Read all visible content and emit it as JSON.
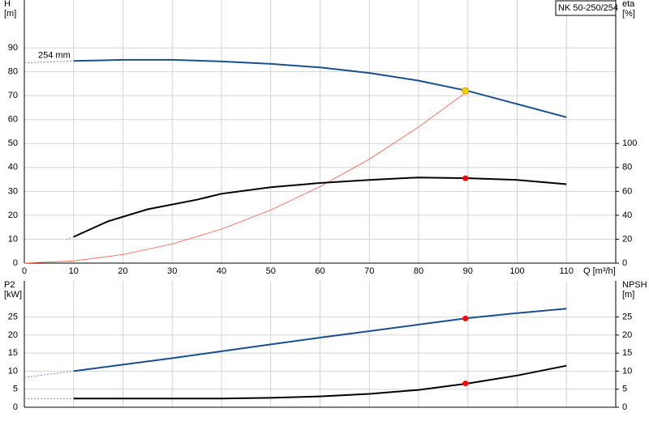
{
  "chart_data": [
    {
      "type": "line",
      "title": "NK 50-250/254",
      "ylabel": "H",
      "yunit": "[m]",
      "y2label": "eta",
      "y2unit": "[%]",
      "xlabel": "Q [m³/h]",
      "annotation": "254 mm",
      "xlim": [
        0,
        120
      ],
      "xticks": [
        0,
        10,
        20,
        30,
        40,
        50,
        60,
        70,
        80,
        90,
        100,
        110
      ],
      "ylim": [
        0,
        110
      ],
      "yticks": [
        0,
        10,
        20,
        30,
        40,
        50,
        60,
        70,
        80,
        90
      ],
      "y2lim": [
        0,
        220
      ],
      "y2ticks": [
        0,
        20,
        40,
        60,
        80,
        100
      ],
      "grid": true,
      "series": [
        {
          "color": "#6f8fbf",
          "dashed": true,
          "x": [
            0,
            10
          ],
          "values": [
            83.7,
            84.5
          ]
        },
        {
          "color": "#1a4f8f",
          "width": 2,
          "x": [
            10,
            20,
            30,
            40,
            50,
            60,
            70,
            80,
            90,
            100,
            110
          ],
          "values": [
            84.5,
            85,
            85,
            84.3,
            83.3,
            81.8,
            79.5,
            76.3,
            72,
            66.5,
            61
          ]
        },
        {
          "color": "#ff5a4a",
          "width": 0.8,
          "x": [
            0,
            10,
            20,
            30,
            40,
            50,
            60,
            70,
            80,
            90
          ],
          "values": [
            0,
            0.9,
            3.6,
            8,
            14.2,
            22.2,
            32,
            43.5,
            56.9,
            72
          ]
        },
        {
          "color": "#999999",
          "dashed": true,
          "axis": "y2",
          "x": [
            8.5,
            10
          ],
          "values": [
            19.6,
            22
          ]
        },
        {
          "color": "#000000",
          "width": 2,
          "axis": "y2",
          "x": [
            10,
            17,
            25,
            35,
            40,
            50,
            60,
            70,
            80,
            90,
            100,
            110
          ],
          "values": [
            22,
            35,
            45,
            53,
            58,
            63.5,
            67,
            69.6,
            71.6,
            71,
            69.6,
            66
          ]
        }
      ],
      "points": [
        {
          "x": 89.5,
          "y": 72,
          "color": "#ffcc00"
        },
        {
          "x": 89.5,
          "y": 71,
          "color": "#ff0000",
          "axis": "y2"
        }
      ]
    },
    {
      "type": "line",
      "ylabel": "P2",
      "yunit": "[kW]",
      "y2label": "NPSH",
      "y2unit": "[m]",
      "xlim": [
        0,
        120
      ],
      "xticks": [
        0,
        10,
        20,
        30,
        40,
        50,
        60,
        70,
        80,
        90,
        100,
        110
      ],
      "ylim": [
        0,
        35
      ],
      "yticks": [
        0,
        5,
        10,
        15,
        20,
        25
      ],
      "y2lim": [
        0,
        35
      ],
      "y2ticks": [
        0,
        5,
        10,
        15,
        20,
        25
      ],
      "grid": true,
      "series": [
        {
          "color": "#6f8fbf",
          "dashed": true,
          "x": [
            0,
            10
          ],
          "values": [
            8.3,
            10
          ]
        },
        {
          "color": "#1a4f8f",
          "width": 2,
          "x": [
            10,
            20,
            30,
            40,
            50,
            60,
            70,
            80,
            90,
            100,
            110
          ],
          "values": [
            10,
            11.8,
            13.6,
            15.5,
            17.4,
            19.3,
            21.1,
            22.9,
            24.7,
            26.1,
            27.3
          ]
        },
        {
          "color": "#999999",
          "dashed": true,
          "axis": "y2",
          "x": [
            0,
            10
          ],
          "values": [
            2.3,
            2.4
          ]
        },
        {
          "color": "#000000",
          "width": 2,
          "axis": "y2",
          "x": [
            10,
            20,
            30,
            40,
            50,
            60,
            70,
            80,
            90,
            100,
            110
          ],
          "values": [
            2.4,
            2.4,
            2.4,
            2.4,
            2.6,
            3,
            3.7,
            4.8,
            6.6,
            8.8,
            11.5
          ]
        }
      ],
      "points": [
        {
          "x": 89.5,
          "y": 24.6,
          "color": "#ff0000"
        },
        {
          "x": 89.5,
          "y": 6.6,
          "color": "#ff0000",
          "axis": "y2"
        }
      ]
    }
  ]
}
